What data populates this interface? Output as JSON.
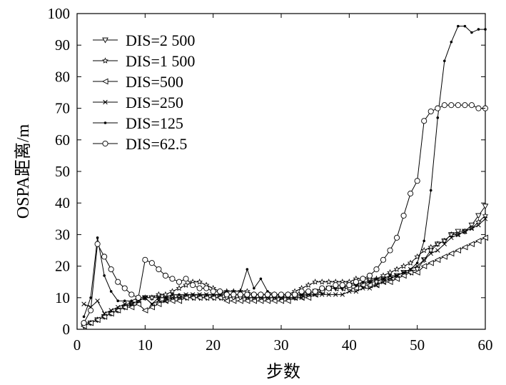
{
  "chart_data": {
    "type": "line",
    "title": "",
    "xlabel": "步数",
    "ylabel": "OSPA距离/m",
    "xlim": [
      0,
      60
    ],
    "ylim": [
      0,
      100
    ],
    "xticks": [
      0,
      10,
      20,
      30,
      40,
      50,
      60
    ],
    "yticks": [
      0,
      10,
      20,
      30,
      40,
      50,
      60,
      70,
      80,
      90,
      100
    ],
    "grid": false,
    "legend_position": "top-left",
    "x": [
      1,
      2,
      3,
      4,
      5,
      6,
      7,
      8,
      9,
      10,
      11,
      12,
      13,
      14,
      15,
      16,
      17,
      18,
      19,
      20,
      21,
      22,
      23,
      24,
      25,
      26,
      27,
      28,
      29,
      30,
      31,
      32,
      33,
      34,
      35,
      36,
      37,
      38,
      39,
      40,
      41,
      42,
      43,
      44,
      45,
      46,
      47,
      48,
      49,
      50,
      51,
      52,
      53,
      54,
      55,
      56,
      57,
      58,
      59,
      60
    ],
    "series": [
      {
        "name": "DIS=2 500",
        "marker": "triangle-down",
        "values": [
          1,
          2,
          3,
          4,
          5,
          6,
          7,
          8,
          9,
          10,
          10,
          10,
          10,
          10,
          10,
          10,
          10,
          10,
          10,
          10,
          10,
          10,
          10,
          10,
          10,
          10,
          10,
          10,
          10,
          10,
          10,
          10,
          11,
          11,
          12,
          12,
          13,
          13,
          13,
          14,
          14,
          14,
          15,
          15,
          16,
          16,
          17,
          18,
          18,
          19,
          22,
          25,
          27,
          28,
          30,
          31,
          31,
          33,
          36,
          39
        ]
      },
      {
        "name": "DIS=1 500",
        "marker": "star",
        "values": [
          2,
          2,
          3,
          4,
          5,
          6,
          7,
          8,
          9,
          10,
          10,
          11,
          11,
          12,
          13,
          14,
          15,
          15,
          14,
          13,
          12,
          12,
          12,
          12,
          12,
          11,
          11,
          11,
          11,
          10,
          11,
          12,
          13,
          14,
          15,
          15,
          15,
          15,
          15,
          15,
          16,
          16,
          16,
          16,
          17,
          18,
          19,
          20,
          21,
          23,
          25,
          26,
          27,
          28,
          30,
          30,
          31,
          32,
          34,
          36
        ]
      },
      {
        "name": "DIS=500",
        "marker": "triangle-left",
        "values": [
          1,
          2,
          3,
          4,
          5,
          6,
          7,
          7,
          8,
          6,
          7,
          8,
          9,
          9,
          9,
          10,
          10,
          10,
          10,
          10,
          10,
          9,
          9,
          9,
          9,
          9,
          9,
          9,
          9,
          9,
          9,
          10,
          10,
          10,
          11,
          12,
          13,
          13,
          13,
          13,
          13,
          14,
          14,
          14,
          15,
          15,
          16,
          17,
          18,
          18,
          20,
          21,
          22,
          23,
          24,
          25,
          26,
          27,
          28,
          29
        ]
      },
      {
        "name": "DIS=250",
        "marker": "x",
        "values": [
          8,
          7,
          9,
          5,
          6,
          7,
          8,
          8,
          9,
          10,
          8,
          9,
          9,
          10,
          10,
          11,
          11,
          11,
          11,
          11,
          11,
          11,
          11,
          11,
          10,
          10,
          10,
          10,
          10,
          10,
          10,
          10,
          10,
          11,
          11,
          11,
          11,
          11,
          11,
          12,
          12,
          13,
          13,
          14,
          15,
          16,
          17,
          18,
          19,
          20,
          22,
          24,
          25,
          27,
          29,
          30,
          31,
          32,
          33,
          35
        ]
      },
      {
        "name": "DIS=125",
        "marker": "dot",
        "values": [
          4,
          10,
          29,
          17,
          12,
          9,
          9,
          9,
          10,
          10,
          8,
          10,
          10,
          11,
          11,
          11,
          11,
          11,
          11,
          11,
          11,
          12,
          12,
          12,
          19,
          13,
          16,
          12,
          11,
          11,
          11,
          11,
          11,
          12,
          12,
          13,
          13,
          13,
          13,
          14,
          14,
          15,
          15,
          16,
          16,
          17,
          17,
          18,
          19,
          21,
          28,
          44,
          67,
          85,
          91,
          96,
          96,
          94,
          95,
          95
        ]
      },
      {
        "name": "DIS=62.5",
        "marker": "circle",
        "values": [
          2,
          6,
          27,
          23,
          19,
          15,
          13,
          11,
          10,
          22,
          21,
          19,
          17,
          16,
          15,
          16,
          14,
          13,
          13,
          12,
          12,
          11,
          11,
          11,
          11,
          11,
          11,
          11,
          11,
          11,
          11,
          11,
          12,
          12,
          12,
          13,
          13,
          14,
          14,
          14,
          15,
          16,
          17,
          19,
          22,
          25,
          29,
          36,
          43,
          47,
          66,
          69,
          70,
          71,
          71,
          71,
          71,
          71,
          70,
          70
        ]
      }
    ]
  }
}
